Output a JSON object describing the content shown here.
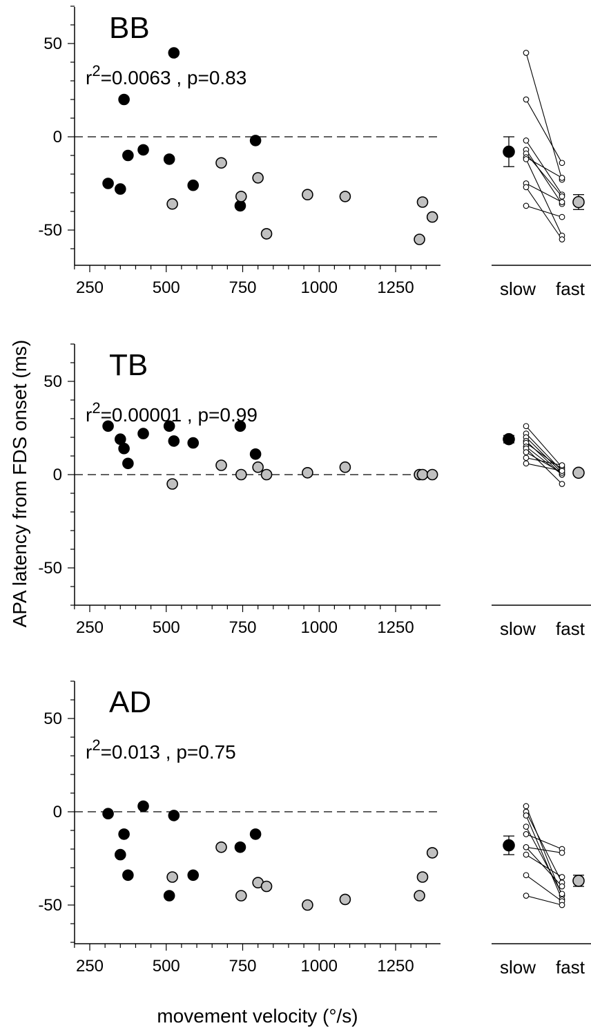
{
  "figure": {
    "ylabel": "APA latency from FDS onset (ms)",
    "xlabel": "movement velocity (°/s)"
  },
  "colors": {
    "slow_fill": "#000000",
    "fast_fill": "#c0c0c0",
    "outline": "#000000",
    "subject_fill": "#ffffff"
  },
  "chart_data": [
    {
      "type": "scatter",
      "title": "BB",
      "stat_r_prefix": "r",
      "stat_r_exp": "2",
      "stat_rest": "=0.0063 , p=0.83",
      "xlim": [
        200,
        1400
      ],
      "ylim": [
        -70,
        70
      ],
      "xticks": [
        "250",
        "500",
        "750",
        "1000",
        "1250"
      ],
      "xtick_values": [
        250,
        500,
        750,
        1000,
        1250
      ],
      "yticks": [
        "-50",
        "0",
        "50"
      ],
      "ytick_values": [
        -50,
        0,
        50
      ],
      "dashed_zero_line": true,
      "series": [
        {
          "name": "slow",
          "points": [
            [
              310,
              -25
            ],
            [
              350,
              -28
            ],
            [
              362,
              20
            ],
            [
              375,
              -10
            ],
            [
              425,
              -7
            ],
            [
              510,
              -12
            ],
            [
              525,
              45
            ],
            [
              588,
              -26
            ],
            [
              742,
              -37
            ],
            [
              792,
              -2
            ]
          ]
        },
        {
          "name": "fast",
          "points": [
            [
              520,
              -36
            ],
            [
              680,
              -14
            ],
            [
              745,
              -32
            ],
            [
              800,
              -22
            ],
            [
              828,
              -52
            ],
            [
              962,
              -31
            ],
            [
              1085,
              -32
            ],
            [
              1328,
              -55
            ],
            [
              1338,
              -35
            ],
            [
              1370,
              -43
            ]
          ]
        }
      ],
      "paired": {
        "categories": [
          "slow",
          "fast"
        ],
        "subject_pairs": [
          [
            45,
            -23
          ],
          [
            20,
            -14
          ],
          [
            -2,
            -31
          ],
          [
            -7,
            -36
          ],
          [
            -9,
            -32
          ],
          [
            -11,
            -22
          ],
          [
            -12,
            -53
          ],
          [
            -25,
            -35
          ],
          [
            -27,
            -55
          ],
          [
            -37,
            -43
          ]
        ],
        "mean_slow": -8,
        "err_slow": 8,
        "mean_fast": -35,
        "err_fast": 4
      }
    },
    {
      "type": "scatter",
      "title": "TB",
      "stat_r_prefix": "r",
      "stat_r_exp": "2",
      "stat_rest": "=0.00001 , p=0.99",
      "xlim": [
        200,
        1400
      ],
      "ylim": [
        -70,
        70
      ],
      "xticks": [
        "250",
        "500",
        "750",
        "1000",
        "1250"
      ],
      "xtick_values": [
        250,
        500,
        750,
        1000,
        1250
      ],
      "yticks": [
        "-50",
        "0",
        "50"
      ],
      "ytick_values": [
        -50,
        0,
        50
      ],
      "dashed_zero_line": true,
      "series": [
        {
          "name": "slow",
          "points": [
            [
              310,
              26
            ],
            [
              350,
              19
            ],
            [
              362,
              14
            ],
            [
              375,
              6
            ],
            [
              425,
              22
            ],
            [
              510,
              26
            ],
            [
              525,
              18
            ],
            [
              588,
              17
            ],
            [
              742,
              26
            ],
            [
              792,
              11
            ]
          ]
        },
        {
          "name": "fast",
          "points": [
            [
              520,
              -5
            ],
            [
              680,
              5
            ],
            [
              745,
              0
            ],
            [
              800,
              4
            ],
            [
              828,
              0
            ],
            [
              962,
              1
            ],
            [
              1085,
              4
            ],
            [
              1328,
              0
            ],
            [
              1338,
              0
            ],
            [
              1370,
              0
            ]
          ]
        }
      ],
      "paired": {
        "categories": [
          "slow",
          "fast"
        ],
        "subject_pairs": [
          [
            26,
            4
          ],
          [
            22,
            2
          ],
          [
            20,
            1
          ],
          [
            18,
            0
          ],
          [
            17,
            3
          ],
          [
            15,
            0
          ],
          [
            14,
            -5
          ],
          [
            12,
            1
          ],
          [
            9,
            5
          ],
          [
            6,
            2
          ]
        ],
        "mean_slow": 19,
        "err_slow": 2,
        "mean_fast": 1,
        "err_fast": 1
      }
    },
    {
      "type": "scatter",
      "title": "AD",
      "stat_r_prefix": "r",
      "stat_r_exp": "2",
      "stat_rest": "=0.013 , p=0.75",
      "xlim": [
        200,
        1400
      ],
      "ylim": [
        -70,
        70
      ],
      "xticks": [
        "250",
        "500",
        "750",
        "1000",
        "1250"
      ],
      "xtick_values": [
        250,
        500,
        750,
        1000,
        1250
      ],
      "yticks": [
        "-50",
        "0",
        "50"
      ],
      "ytick_values": [
        -50,
        0,
        50
      ],
      "dashed_zero_line": true,
      "series": [
        {
          "name": "slow",
          "points": [
            [
              310,
              -1
            ],
            [
              350,
              -23
            ],
            [
              362,
              -12
            ],
            [
              375,
              -34
            ],
            [
              425,
              3
            ],
            [
              510,
              -45
            ],
            [
              525,
              -2
            ],
            [
              588,
              -34
            ],
            [
              742,
              -19
            ],
            [
              792,
              -12
            ]
          ]
        },
        {
          "name": "fast",
          "points": [
            [
              520,
              -35
            ],
            [
              680,
              -19
            ],
            [
              745,
              -45
            ],
            [
              800,
              -38
            ],
            [
              828,
              -40
            ],
            [
              962,
              -50
            ],
            [
              1085,
              -47
            ],
            [
              1328,
              -45
            ],
            [
              1338,
              -35
            ],
            [
              1370,
              -22
            ]
          ]
        }
      ],
      "paired": {
        "categories": [
          "slow",
          "fast"
        ],
        "subject_pairs": [
          [
            3,
            -45
          ],
          [
            0,
            -38
          ],
          [
            -2,
            -47
          ],
          [
            -12,
            -20
          ],
          [
            -19,
            -22
          ],
          [
            -19,
            -40
          ],
          [
            -23,
            -35
          ],
          [
            -34,
            -48
          ],
          [
            -45,
            -50
          ],
          [
            -8,
            -44
          ]
        ],
        "mean_slow": -18,
        "err_slow": 5,
        "mean_fast": -37,
        "err_fast": 3
      }
    }
  ]
}
